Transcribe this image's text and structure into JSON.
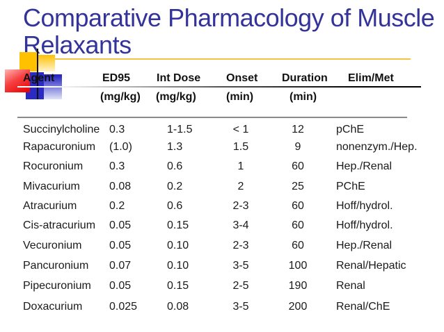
{
  "slide": {
    "title": "Comparative Pharmacology of Muscle Relaxants",
    "title_lines": [
      "Comparative Pharmacology of Muscle",
      "Relaxants"
    ]
  },
  "table": {
    "columns": [
      {
        "label": "Agent",
        "sub": ""
      },
      {
        "label": "ED95",
        "sub": "(mg/kg)"
      },
      {
        "label": "Int Dose",
        "sub": "(mg/kg)"
      },
      {
        "label": "Onset",
        "sub": "(min)"
      },
      {
        "label": "Duration",
        "sub": "(min)"
      },
      {
        "label": "Elim/Met",
        "sub": ""
      }
    ],
    "rows": [
      [
        "Succinylcholine",
        "0.3",
        "1-1.5",
        "< 1",
        "12",
        "pChE"
      ],
      [
        "Rapacuronium",
        "(1.0)",
        "1.3",
        "1.5",
        "9",
        "nonenzym./Hep."
      ],
      [
        "Rocuronium",
        "0.3",
        "0.6",
        "1",
        "60",
        "Hep./Renal"
      ],
      [
        "Mivacurium",
        "0.08",
        "0.2",
        "2",
        "25",
        "PChE"
      ],
      [
        "Atracurium",
        "0.2",
        "0.6",
        "2-3",
        "60",
        "Hoff/hydrol."
      ],
      [
        "Cis-atracurium",
        "0.05",
        "0.15",
        "3-4",
        "60",
        "Hoff/hydrol."
      ],
      [
        "Vecuronium",
        "0.05",
        "0.10",
        "2-3",
        "60",
        "Hep./Renal"
      ],
      [
        "Pancuronium",
        "0.07",
        "0.10",
        "3-5",
        "100",
        "Renal/Hepatic"
      ],
      [
        "Pipecuronium",
        "0.05",
        "0.15",
        "2-5",
        "190",
        "Renal"
      ],
      [
        "Doxacurium",
        "0.025",
        "0.08",
        "3-5",
        "200",
        "Renal/ChE"
      ]
    ]
  },
  "theme": {
    "title_color": "#333399",
    "gold": "#FFC100",
    "red": "#E80000",
    "blue": "#2B2BC4",
    "line_gold": "#F5C242",
    "text_color": "#1A1A1A"
  }
}
